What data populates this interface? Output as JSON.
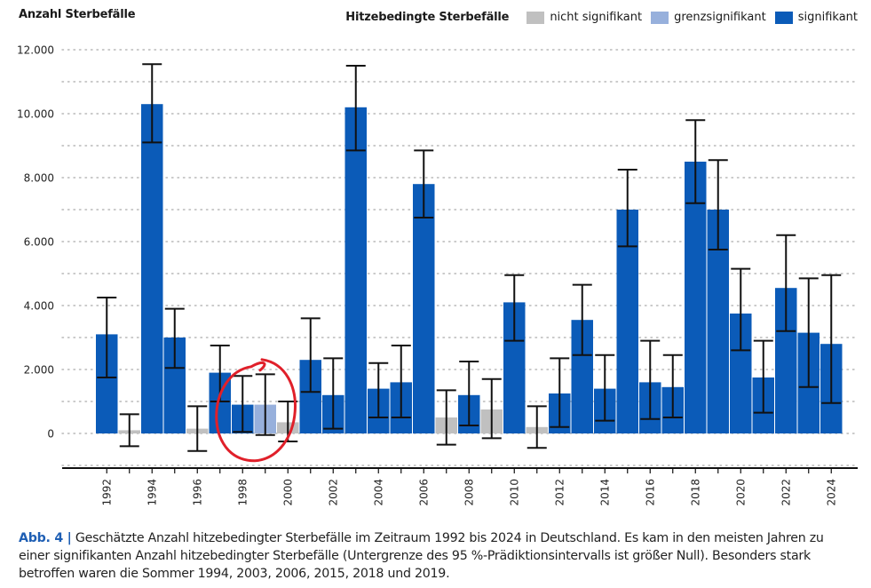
{
  "header": {
    "y_title": "Anzahl Sterbefälle"
  },
  "legend": {
    "title": "Hitzebedingte Sterbefälle",
    "items": [
      {
        "label": "nicht signifikant",
        "color": "#c0c0c0"
      },
      {
        "label": "grenzsignifikant",
        "color": "#97b0dc"
      },
      {
        "label": "signifikant",
        "color": "#0b5bb8"
      }
    ]
  },
  "caption": {
    "label": "Abb. 4 |",
    "text": "Geschätzte Anzahl hitzebedingter Sterbefälle im Zeitraum 1992 bis 2024 in Deutschland. Es kam in den meisten Jahren zu einer signifikanten Anzahl hitzebedingter Sterbefälle (Untergrenze des 95 %-Prädiktionsintervalls ist größer Null). Besonders stark betroffen waren die Sommer 1994, 2003, 2006, 2015, 2018 und 2019."
  },
  "chart_data": {
    "type": "bar",
    "ylabel": "Anzahl Sterbefälle",
    "ylim": [
      -1000,
      12500
    ],
    "yticks": [
      0,
      2000,
      4000,
      6000,
      8000,
      10000,
      12000
    ],
    "ytick_labels": [
      "0",
      "2.000",
      "4.000",
      "6.000",
      "8.000",
      "10.000",
      "12.000"
    ],
    "xtick_labels": [
      "1992",
      "1994",
      "1996",
      "1998",
      "2000",
      "2002",
      "2004",
      "2006",
      "2008",
      "2010",
      "2012",
      "2014",
      "2016",
      "2018",
      "2020",
      "2022",
      "2024"
    ],
    "grid": "horizontal dotted",
    "legend_position": "top-right",
    "colors": {
      "nicht signifikant": "#c0c0c0",
      "grenzsignifikant": "#97b0dc",
      "signifikant": "#0b5bb8"
    },
    "categories": [
      1992,
      1993,
      1994,
      1995,
      1996,
      1997,
      1998,
      1999,
      2000,
      2001,
      2002,
      2003,
      2004,
      2005,
      2006,
      2007,
      2008,
      2009,
      2010,
      2011,
      2012,
      2013,
      2014,
      2015,
      2016,
      2017,
      2018,
      2019,
      2020,
      2021,
      2022,
      2023,
      2024
    ],
    "values": [
      3100,
      100,
      10300,
      3000,
      150,
      1900,
      900,
      900,
      350,
      2300,
      1200,
      10200,
      1400,
      1600,
      7800,
      500,
      1200,
      750,
      4100,
      200,
      1250,
      3550,
      1400,
      7000,
      1600,
      1450,
      8500,
      7000,
      3750,
      1750,
      4550,
      3150,
      2800
    ],
    "lower": [
      1750,
      -400,
      9100,
      2050,
      -550,
      1000,
      50,
      -50,
      -250,
      1300,
      150,
      8850,
      500,
      500,
      6750,
      -350,
      250,
      -150,
      2900,
      -450,
      200,
      2450,
      400,
      5850,
      450,
      500,
      7200,
      5750,
      2600,
      650,
      3200,
      1450,
      950
    ],
    "upper": [
      4250,
      600,
      11550,
      3900,
      850,
      2750,
      1800,
      1850,
      1000,
      3600,
      2350,
      11500,
      2200,
      2750,
      8850,
      1350,
      2250,
      1700,
      4950,
      850,
      2350,
      4650,
      2450,
      8250,
      2900,
      2450,
      9800,
      8550,
      5150,
      2900,
      6200,
      4850,
      4950
    ],
    "significance": [
      "signifikant",
      "nicht signifikant",
      "signifikant",
      "signifikant",
      "nicht signifikant",
      "signifikant",
      "signifikant",
      "grenzsignifikant",
      "nicht signifikant",
      "signifikant",
      "signifikant",
      "signifikant",
      "signifikant",
      "signifikant",
      "signifikant",
      "nicht signifikant",
      "signifikant",
      "nicht signifikant",
      "signifikant",
      "nicht signifikant",
      "signifikant",
      "signifikant",
      "signifikant",
      "signifikant",
      "signifikant",
      "signifikant",
      "signifikant",
      "signifikant",
      "signifikant",
      "signifikant",
      "signifikant",
      "signifikant",
      "signifikant"
    ],
    "annotation": {
      "type": "circle",
      "color": "#e0202a",
      "x_range": [
        1998,
        1999
      ]
    }
  }
}
